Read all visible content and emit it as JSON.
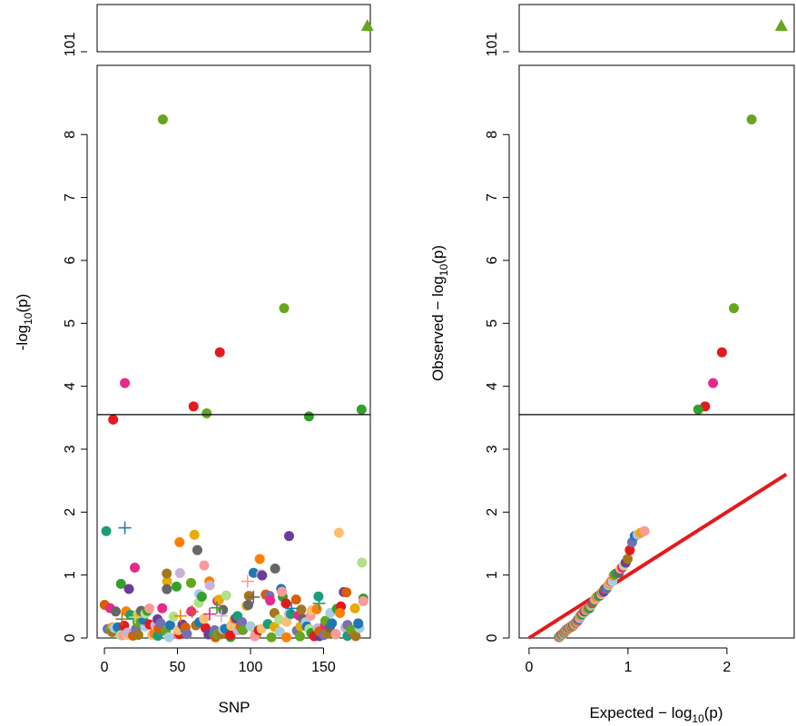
{
  "palette": [
    "#1B9E77",
    "#D95F02",
    "#7570B3",
    "#E7298A",
    "#66A61E",
    "#E6AB02",
    "#A6761D",
    "#666666",
    "#A6CEE3",
    "#1F78B4",
    "#B2DF8A",
    "#33A02C",
    "#FB9A99",
    "#E31A1C",
    "#FDBF6F",
    "#FF7F00",
    "#CAB2D6",
    "#6A3D9A"
  ],
  "chart_data": [
    {
      "type": "scatter",
      "name": "manhattan",
      "xlabel": "SNP",
      "ylabel_main": "-log",
      "ylabel_sub": "10",
      "ylabel_tail": "(p)",
      "xlim": [
        -5,
        182
      ],
      "ylim": [
        0,
        9.1
      ],
      "xticks": [
        0,
        50,
        100,
        150
      ],
      "xtick_labels": [
        "0",
        "50",
        "100",
        "150"
      ],
      "yticks": [
        0,
        1,
        2,
        3,
        4,
        5,
        6,
        7,
        8
      ],
      "ytick_labels": [
        "0",
        "1",
        "2",
        "3",
        "4",
        "5",
        "6",
        "7",
        "8"
      ],
      "threshold": 3.55,
      "break_tick_label": "101",
      "break_points": [
        {
          "x": 180,
          "y": 101,
          "shape": "triangle",
          "color": "#66A61E"
        }
      ],
      "highlight_points": [
        {
          "x": 40,
          "y": 8.24,
          "color": "#66A61E"
        },
        {
          "x": 123,
          "y": 5.24,
          "color": "#66A61E"
        },
        {
          "x": 79,
          "y": 4.54,
          "color": "#E31A1C"
        },
        {
          "x": 14,
          "y": 4.05,
          "color": "#E7298A"
        },
        {
          "x": 61,
          "y": 3.68,
          "color": "#E31A1C"
        },
        {
          "x": 70,
          "y": 3.57,
          "color": "#66A61E"
        },
        {
          "x": 140,
          "y": 3.52,
          "color": "#33A02C"
        },
        {
          "x": 176,
          "y": 3.63,
          "color": "#33A02C"
        },
        {
          "x": 6,
          "y": 3.47,
          "color": "#E31A1C"
        }
      ],
      "cross_points": [
        {
          "x": 14,
          "y": 1.75,
          "color": "#1F78B4"
        },
        {
          "x": 12,
          "y": 0.3,
          "color": "#A6761D"
        },
        {
          "x": 21,
          "y": 0.33,
          "color": "#B2DF8A"
        },
        {
          "x": 52,
          "y": 0.35,
          "color": "#FF7F00"
        },
        {
          "x": 60,
          "y": 0.42,
          "color": "#D95F02"
        },
        {
          "x": 72,
          "y": 0.38,
          "color": "#E7298A"
        },
        {
          "x": 77,
          "y": 0.48,
          "color": "#33A02C"
        },
        {
          "x": 80,
          "y": 0.35,
          "color": "#CAB2D6"
        },
        {
          "x": 102,
          "y": 0.65,
          "color": "#666666"
        },
        {
          "x": 128,
          "y": 0.47,
          "color": "#1F78B4"
        },
        {
          "x": 147,
          "y": 0.55,
          "color": "#1B9E77"
        },
        {
          "x": 98,
          "y": 0.9,
          "color": "#FB9A99"
        }
      ],
      "point_count": 175,
      "seed": 7
    },
    {
      "type": "scatter",
      "name": "qq",
      "xlabel_main": "Expected",
      "xlabel_mid": " − log",
      "xlabel_sub": "10",
      "xlabel_tail": "(p)",
      "ylabel_main": "Observed",
      "ylabel_mid": " − log",
      "ylabel_sub": "10",
      "ylabel_tail": "(p)",
      "xlim": [
        -0.1,
        2.68
      ],
      "ylim": [
        0,
        9.1
      ],
      "xticks": [
        0,
        1,
        2
      ],
      "xtick_labels": [
        "0",
        "1",
        "2"
      ],
      "yticks": [
        0,
        1,
        2,
        3,
        4,
        5,
        6,
        7,
        8
      ],
      "ytick_labels": [
        "0",
        "1",
        "2",
        "3",
        "4",
        "5",
        "6",
        "7",
        "8"
      ],
      "threshold": 3.55,
      "break_tick_label": "101",
      "break_points": [
        {
          "x": 2.55,
          "y": 101,
          "shape": "triangle",
          "color": "#66A61E"
        }
      ],
      "reference_line": {
        "from": [
          0,
          0
        ],
        "to": [
          2.6,
          2.6
        ],
        "color": "#E31A1C"
      },
      "top_points": [
        {
          "x": 2.25,
          "y": 8.24,
          "color": "#66A61E"
        },
        {
          "x": 2.07,
          "y": 5.24,
          "color": "#66A61E"
        },
        {
          "x": 1.95,
          "y": 4.54,
          "color": "#E31A1C"
        },
        {
          "x": 1.86,
          "y": 4.05,
          "color": "#E7298A"
        },
        {
          "x": 1.78,
          "y": 3.68,
          "color": "#E31A1C"
        },
        {
          "x": 1.71,
          "y": 3.63,
          "color": "#33A02C"
        }
      ]
    }
  ]
}
